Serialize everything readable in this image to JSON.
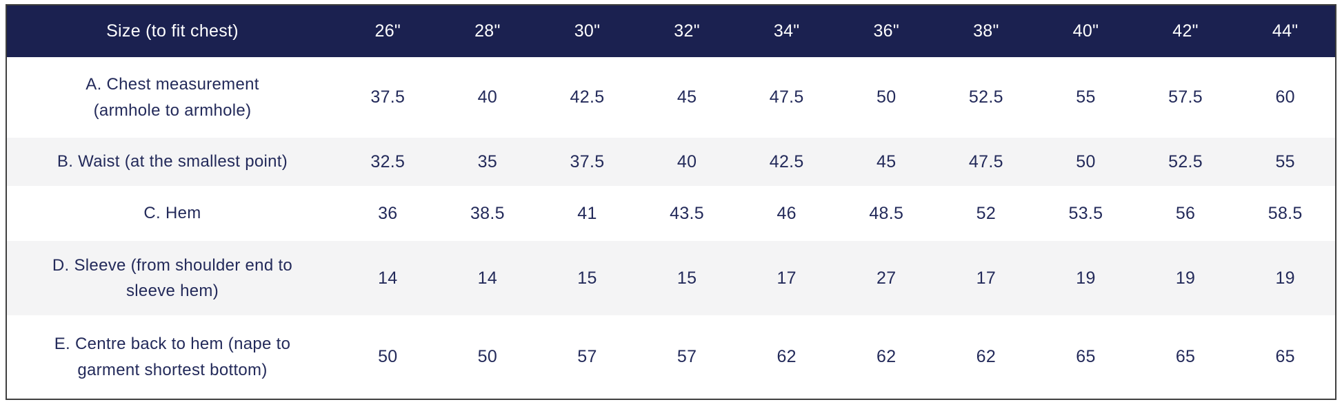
{
  "table": {
    "header": {
      "label": "Size (to fit chest)",
      "sizes": [
        "26\"",
        "28\"",
        "30\"",
        "32\"",
        "34\"",
        "36\"",
        "38\"",
        "40\"",
        "42\"",
        "44\""
      ]
    },
    "rows": [
      {
        "label": "A. Chest measurement\n(armhole to armhole)",
        "values": [
          "37.5",
          "40",
          "42.5",
          "45",
          "47.5",
          "50",
          "52.5",
          "55",
          "57.5",
          "60"
        ]
      },
      {
        "label": "B. Waist (at the smallest point)",
        "values": [
          "32.5",
          "35",
          "37.5",
          "40",
          "42.5",
          "45",
          "47.5",
          "50",
          "52.5",
          "55"
        ]
      },
      {
        "label": "C. Hem",
        "values": [
          "36",
          "38.5",
          "41",
          "43.5",
          "46",
          "48.5",
          "52",
          "53.5",
          "56",
          "58.5"
        ]
      },
      {
        "label": "D. Sleeve (from shoulder end to\nsleeve hem)",
        "values": [
          "14",
          "14",
          "15",
          "15",
          "17",
          "27",
          "17",
          "19",
          "19",
          "19"
        ]
      },
      {
        "label": "E. Centre back to hem (nape to\ngarment shortest bottom)",
        "values": [
          "50",
          "50",
          "57",
          "57",
          "62",
          "62",
          "62",
          "65",
          "65",
          "65"
        ]
      }
    ]
  },
  "colors": {
    "header_bg": "#1b2150",
    "header_text": "#ffffff",
    "body_text": "#232a5a",
    "stripe_bg": "#f4f4f5",
    "border": "#3f3f3f"
  },
  "chart_data": {
    "type": "table",
    "columns": [
      "Size (to fit chest)",
      "26\"",
      "28\"",
      "30\"",
      "32\"",
      "34\"",
      "36\"",
      "38\"",
      "40\"",
      "42\"",
      "44\""
    ],
    "rows": [
      [
        "A. Chest measurement (armhole to armhole)",
        37.5,
        40,
        42.5,
        45,
        47.5,
        50,
        52.5,
        55,
        57.5,
        60
      ],
      [
        "B. Waist (at the smallest point)",
        32.5,
        35,
        37.5,
        40,
        42.5,
        45,
        47.5,
        50,
        52.5,
        55
      ],
      [
        "C. Hem",
        36,
        38.5,
        41,
        43.5,
        46,
        48.5,
        52,
        53.5,
        56,
        58.5
      ],
      [
        "D. Sleeve (from shoulder end to sleeve hem)",
        14,
        14,
        15,
        15,
        17,
        27,
        17,
        19,
        19,
        19
      ],
      [
        "E. Centre back to hem (nape to garment shortest bottom)",
        50,
        50,
        57,
        57,
        62,
        62,
        62,
        65,
        65,
        65
      ]
    ],
    "layout_hints": {
      "header_row_filled": true,
      "zebra_striping": true,
      "all_cells_center_aligned": true
    }
  }
}
